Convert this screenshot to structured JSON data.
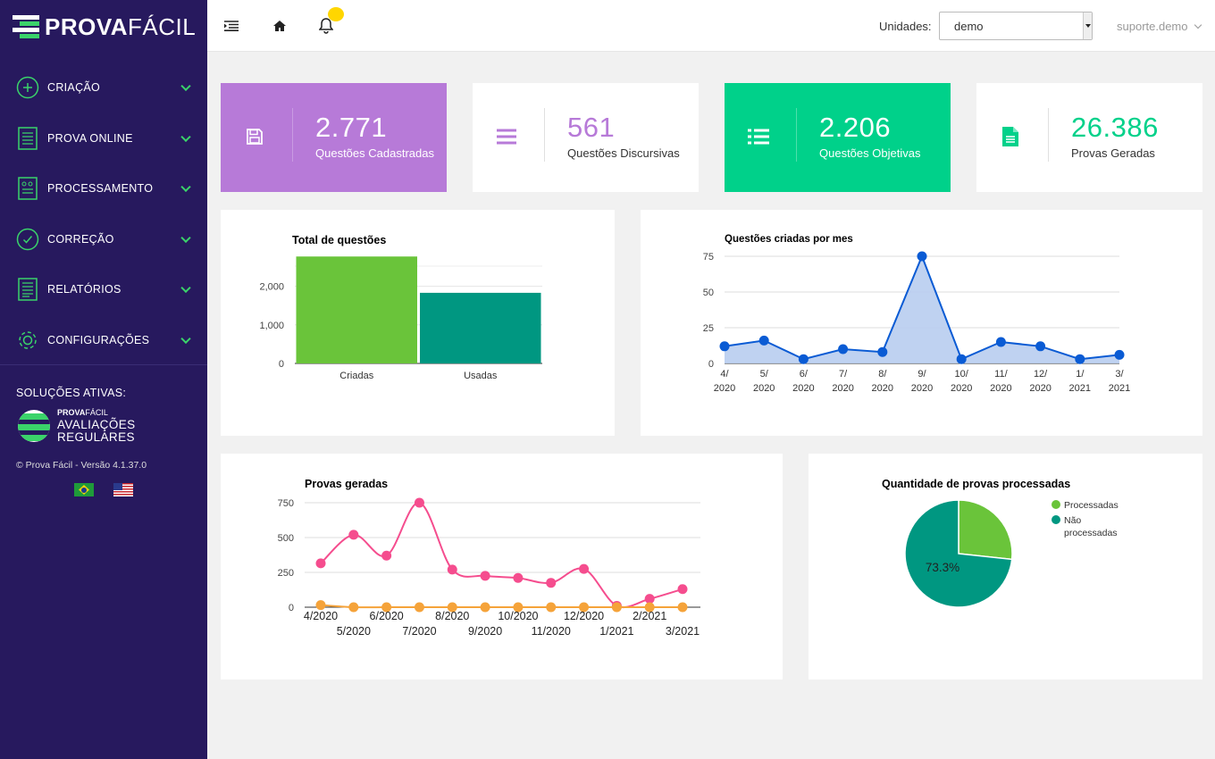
{
  "brand": {
    "name_bold": "PROVA",
    "name_thin": "FÁCIL"
  },
  "sidebar": {
    "items": [
      {
        "label": "CRIAÇÃO",
        "icon": "plus-circle-icon"
      },
      {
        "label": "PROVA ONLINE",
        "icon": "document-list-icon"
      },
      {
        "label": "PROCESSAMENTO",
        "icon": "scan-sheet-icon"
      },
      {
        "label": "CORREÇÃO",
        "icon": "check-circle-icon"
      },
      {
        "label": "RELATÓRIOS",
        "icon": "report-icon"
      },
      {
        "label": "CONFIGURAÇÕES",
        "icon": "gear-icon"
      }
    ],
    "solutions_title": "SOLUÇÕES ATIVAS:",
    "solution": {
      "small_bold": "PROVA",
      "small_thin": "FÁCIL",
      "line1": "AVALIAÇÕES",
      "line2": "REGULARES"
    },
    "version": "© Prova Fácil - Versão 4.1.37.0",
    "flags": [
      "brazil-flag-icon",
      "usa-flag-icon"
    ]
  },
  "topbar": {
    "icons": [
      "menu-toggle-icon",
      "home-icon",
      "bell-icon"
    ],
    "units_label": "Unidades:",
    "units_value": "demo",
    "user": "suporte.demo"
  },
  "cards": [
    {
      "value": "2.771",
      "label": "Questões Cadastradas",
      "icon": "save-icon",
      "bg": "#b77ad8",
      "fg": "#ffffff"
    },
    {
      "value": "561",
      "label": "Questões Discursivas",
      "icon": "lines-icon",
      "bg": "#ffffff",
      "fg": "#b77ad8"
    },
    {
      "value": "2.206",
      "label": "Questões Objetivas",
      "icon": "list-icon",
      "bg": "#00d18a",
      "fg": "#ffffff"
    },
    {
      "value": "26.386",
      "label": "Provas Geradas",
      "icon": "file-icon",
      "bg": "#ffffff",
      "fg": "#00d18a"
    }
  ],
  "chart_data": [
    {
      "type": "bar",
      "title": "Total de questões",
      "categories": [
        "Criadas",
        "Usadas"
      ],
      "values": [
        2771,
        1830
      ],
      "colors": [
        "#6ac43a",
        "#009781"
      ],
      "y_ticks": [
        "0",
        "1,000",
        "2,000"
      ],
      "ylim": [
        0,
        2800
      ]
    },
    {
      "type": "area",
      "title": "Questões criadas por mes",
      "x": [
        "4/ 2020",
        "5/ 2020",
        "6/ 2020",
        "7/ 2020",
        "8/ 2020",
        "9/ 2020",
        "10/ 2020",
        "11/ 2020",
        "12/ 2020",
        "1/ 2021",
        "3/ 2021"
      ],
      "values": [
        12,
        16,
        3,
        10,
        8,
        75,
        3,
        15,
        12,
        3,
        6
      ],
      "y_ticks": [
        "0",
        "25",
        "50",
        "75"
      ],
      "ylim": [
        0,
        75
      ],
      "color": "#0a5bd4",
      "fill": "#b8cdf0"
    },
    {
      "type": "line",
      "title": "Provas geradas",
      "x": [
        "4/2020",
        "5/2020",
        "6/2020",
        "7/2020",
        "8/2020",
        "9/2020",
        "10/2020",
        "11/2020",
        "12/2020",
        "1/2021",
        "2/2021",
        "3/2021"
      ],
      "series": [
        {
          "values": [
            315,
            520,
            370,
            750,
            270,
            225,
            210,
            175,
            275,
            10,
            60,
            130
          ],
          "color": "#f54d8e"
        },
        {
          "values": [
            15,
            0,
            0,
            0,
            0,
            0,
            0,
            0,
            0,
            0,
            0,
            0
          ],
          "color": "#f5a33a"
        }
      ],
      "y_ticks": [
        "0",
        "250",
        "500",
        "750"
      ],
      "ylim": [
        0,
        750
      ]
    },
    {
      "type": "pie",
      "title": "Quantidade de provas processadas",
      "slices": [
        {
          "name": "Processadas",
          "value": 26.7,
          "color": "#6ac43a"
        },
        {
          "name": "Não processadas",
          "value": 73.3,
          "color": "#009781"
        }
      ],
      "slice_label": "73.3%",
      "legend_position": "right"
    }
  ]
}
